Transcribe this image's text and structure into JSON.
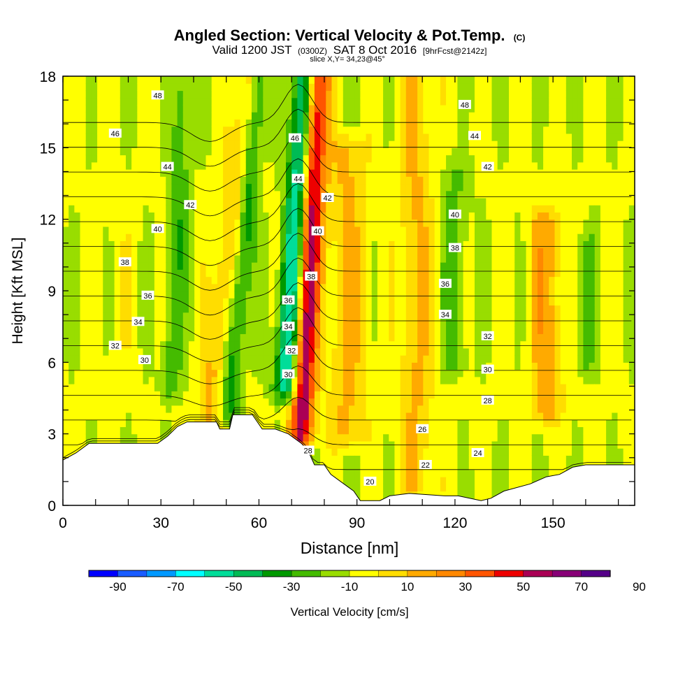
{
  "chart_data": {
    "type": "heatmap",
    "title": "Angled Section: Vertical Velocity & Pot.Temp.",
    "title_units": "(C)",
    "subtitle_prefix": "Valid 1200 JST",
    "subtitle_utc": "(0300Z)",
    "subtitle_date": "SAT 8 Oct 2016",
    "subtitle_forecast": "[9hrFcst@2142z]",
    "slice_label": "slice X,Y= 34,23@45°",
    "xlabel": "Distance [nm]",
    "ylabel": "Height [Kft MSL]",
    "xlim": [
      0,
      175
    ],
    "ylim": [
      0,
      18
    ],
    "x_ticks": [
      "0",
      "30",
      "60",
      "90",
      "120",
      "150"
    ],
    "y_ticks": [
      "0",
      "3",
      "6",
      "9",
      "12",
      "15",
      "18"
    ],
    "colorbar": {
      "label": "Vertical Velocity [cm/s]",
      "tick_labels": [
        "-90",
        "-70",
        "-50",
        "-30",
        "-10",
        "10",
        "30",
        "50",
        "70",
        "90"
      ],
      "colors": [
        "#0000ff",
        "#1a5cff",
        "#0099ff",
        "#00ffff",
        "#00dd99",
        "#00bb55",
        "#009900",
        "#44bb00",
        "#99dd00",
        "#ffff00",
        "#ffdd00",
        "#ffaa00",
        "#ff8800",
        "#ff5500",
        "#ee0000",
        "#aa0055",
        "#880077",
        "#550088"
      ]
    },
    "terrain_profile": [
      [
        0,
        1.9
      ],
      [
        4,
        2.2
      ],
      [
        8,
        2.6
      ],
      [
        12,
        2.6
      ],
      [
        16,
        2.6
      ],
      [
        21,
        2.6
      ],
      [
        25,
        2.6
      ],
      [
        29,
        2.6
      ],
      [
        32,
        2.9
      ],
      [
        35,
        3.3
      ],
      [
        38,
        3.5
      ],
      [
        42,
        3.5
      ],
      [
        47,
        3.5
      ],
      [
        48,
        3.2
      ],
      [
        51,
        3.2
      ],
      [
        52,
        3.8
      ],
      [
        58,
        3.8
      ],
      [
        61,
        3.2
      ],
      [
        65,
        3.2
      ],
      [
        69,
        3.0
      ],
      [
        73,
        2.6
      ],
      [
        75,
        2.3
      ],
      [
        77,
        1.7
      ],
      [
        80,
        1.7
      ],
      [
        82,
        1.3
      ],
      [
        86,
        0.9
      ],
      [
        89,
        0.6
      ],
      [
        91,
        0.2
      ],
      [
        97,
        0.2
      ],
      [
        100,
        0.4
      ],
      [
        106,
        0.5
      ],
      [
        117,
        0.4
      ],
      [
        121,
        0.4
      ],
      [
        128,
        0.2
      ],
      [
        131,
        0.3
      ],
      [
        135,
        0.6
      ],
      [
        143,
        0.9
      ],
      [
        148,
        1.2
      ],
      [
        152,
        1.3
      ],
      [
        156,
        1.6
      ],
      [
        160,
        1.7
      ],
      [
        175,
        1.7
      ]
    ],
    "velocity_features": [
      {
        "x0": 44,
        "x1": 57,
        "h_top": 18,
        "h_base": 3,
        "w": -8,
        "width": 4,
        "value": 20
      },
      {
        "x0": 51,
        "x1": 60,
        "h_top": 18,
        "h_base": 4,
        "w": -8,
        "width": 3,
        "value": -30
      },
      {
        "x0": 68,
        "x1": 74,
        "h_top": 18,
        "h_base": 5,
        "w": -6,
        "width": 3.5,
        "value": -55
      },
      {
        "x0": 73,
        "x1": 78,
        "h_top": 18,
        "h_base": 3,
        "w": 3,
        "width": 3.5,
        "value": 65
      },
      {
        "x0": 87,
        "x1": 87,
        "h_top": 15,
        "h_base": 3,
        "w": 0,
        "width": 6,
        "value": 20
      },
      {
        "x0": 108,
        "x1": 108,
        "h_top": 18,
        "h_base": 1,
        "w": 0,
        "width": 5,
        "value": 20
      },
      {
        "x0": 120,
        "x1": 120,
        "h_top": 14,
        "h_base": 6,
        "w": 0,
        "width": 4,
        "value": -15
      },
      {
        "x0": 148,
        "x1": 148,
        "h_top": 12,
        "h_base": 4,
        "w": 0,
        "width": 5,
        "value": 25
      },
      {
        "x0": 160,
        "x1": 160,
        "h_top": 11,
        "h_base": 6,
        "w": 0,
        "width": 3,
        "value": -15
      },
      {
        "x0": 17,
        "x1": 17,
        "h_top": 12,
        "h_base": 6,
        "w": 0,
        "width": 4,
        "value": 5
      },
      {
        "x0": 33,
        "x1": 37,
        "h_top": 18,
        "h_base": 5,
        "w": -5,
        "width": 3,
        "value": -20
      }
    ],
    "theta_contours": {
      "levels": [
        20,
        22,
        24,
        26,
        28,
        30,
        32,
        34,
        36,
        38,
        40,
        42,
        44,
        46,
        48
      ],
      "labels": [
        {
          "text": "48",
          "x": 29,
          "y": 17.2
        },
        {
          "text": "46",
          "x": 16,
          "y": 15.6
        },
        {
          "text": "44",
          "x": 32,
          "y": 14.2
        },
        {
          "text": "42",
          "x": 39,
          "y": 12.6
        },
        {
          "text": "40",
          "x": 29,
          "y": 11.6
        },
        {
          "text": "38",
          "x": 19,
          "y": 10.2
        },
        {
          "text": "36",
          "x": 26,
          "y": 8.8
        },
        {
          "text": "34",
          "x": 23,
          "y": 7.7
        },
        {
          "text": "32",
          "x": 16,
          "y": 6.7
        },
        {
          "text": "30",
          "x": 25,
          "y": 6.1
        },
        {
          "text": "46",
          "x": 71,
          "y": 15.4
        },
        {
          "text": "44",
          "x": 72,
          "y": 13.7
        },
        {
          "text": "42",
          "x": 81,
          "y": 12.9
        },
        {
          "text": "40",
          "x": 78,
          "y": 11.5
        },
        {
          "text": "38",
          "x": 76,
          "y": 9.6
        },
        {
          "text": "36",
          "x": 69,
          "y": 8.6
        },
        {
          "text": "34",
          "x": 69,
          "y": 7.5
        },
        {
          "text": "32",
          "x": 70,
          "y": 6.5
        },
        {
          "text": "30",
          "x": 69,
          "y": 5.5
        },
        {
          "text": "28",
          "x": 75,
          "y": 2.3
        },
        {
          "text": "48",
          "x": 123,
          "y": 16.8
        },
        {
          "text": "44",
          "x": 126,
          "y": 15.5
        },
        {
          "text": "42",
          "x": 130,
          "y": 14.2
        },
        {
          "text": "40",
          "x": 120,
          "y": 12.2
        },
        {
          "text": "38",
          "x": 120,
          "y": 10.8
        },
        {
          "text": "36",
          "x": 117,
          "y": 9.3
        },
        {
          "text": "34",
          "x": 117,
          "y": 8.0
        },
        {
          "text": "32",
          "x": 130,
          "y": 7.1
        },
        {
          "text": "30",
          "x": 130,
          "y": 5.7
        },
        {
          "text": "28",
          "x": 130,
          "y": 4.4
        },
        {
          "text": "26",
          "x": 110,
          "y": 3.2
        },
        {
          "text": "24",
          "x": 127,
          "y": 2.2
        },
        {
          "text": "22",
          "x": 111,
          "y": 1.7
        },
        {
          "text": "20",
          "x": 94,
          "y": 1.0
        }
      ]
    }
  }
}
